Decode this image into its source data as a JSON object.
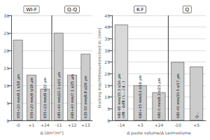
{
  "chart_data": [
    {
      "type": "bar",
      "group_titles": [
        "WI-F",
        "Q-Q"
      ],
      "group_sizes": [
        3,
        3
      ],
      "categories": [
        "-0",
        "+1",
        "+24",
        "-11",
        "+12",
        "+13"
      ],
      "values": [
        23,
        13,
        9,
        25,
        13,
        19
      ],
      "annotations": [
        [
          "655+20 mm/9.1 s/18 μm"
        ],
        [
          "655+20 mm/9 s/18 μm"
        ],
        [
          "655+23 mm/9 s/22 μm"
        ],
        [
          "685+40 mm/20.3 s/20 μm"
        ],
        [
          "695+40 mm/7.1 s/25 μm"
        ],
        [
          "635-50 mm/8.8 s/28 μm"
        ]
      ],
      "color": "#cccccc",
      "xlabel": "Δ [dm²/m²]",
      "ylim": [
        0,
        30
      ],
      "yticks": [
        0,
        5,
        10,
        15,
        20,
        25,
        30
      ],
      "grid": true
    },
    {
      "type": "bar",
      "group_titles": [
        "K-F",
        "Q"
      ],
      "group_sizes": [
        3,
        2
      ],
      "categories": [
        "-14",
        "+3",
        "+24",
        "-10",
        "+5"
      ],
      "values": [
        41,
        15,
        12,
        25,
        23
      ],
      "annotations": [
        [
          "680-95 mm/35.3 s/16 μm",
          "(sfB - ΔsfB / L... / d...)"
        ],
        [
          "690+15 mm/13 s/19 μm"
        ],
        [
          "680-0 mm/9.3 s/23 μm"
        ],
        [
          "680-40 mm/30.5 s/17 μm"
        ],
        [
          "Q..."
        ]
      ],
      "colors": [
        "#d9d9d9",
        "#cccccc",
        "#cccccc",
        "#cccccc",
        "#cccccc"
      ],
      "xlabel": "Δ paste volume/Δ Leimvolume",
      "ylabel": "blocking step/Höhenunterschied st₁ [mm]",
      "ylim": [
        0,
        45
      ],
      "yticks": [
        0,
        5,
        10,
        15,
        20,
        25,
        30,
        35,
        40,
        45
      ],
      "grid": true
    }
  ]
}
